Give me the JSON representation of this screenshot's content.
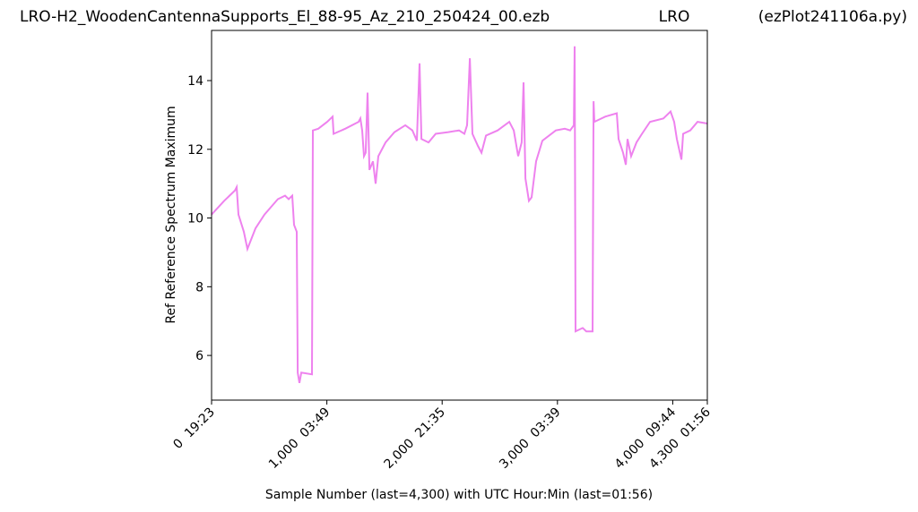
{
  "chart_data": {
    "type": "line",
    "title_left": "LRO-H2_WoodenCantennaSupports_El_88-95_Az_210_250424_00.ezb",
    "title_center": "LRO",
    "title_right": "(ezPlot241106a.py)",
    "y_label": "Ref Reference Spectrum Maximum",
    "x_label": "Sample Number (last=4,300) with UTC Hour:Min (last=01:56)",
    "color": "#ee82ee",
    "x": [
      0,
      109,
      202,
      218,
      233,
      280,
      311,
      381,
      459,
      575,
      638,
      669,
      700,
      715,
      739,
      747,
      762,
      778,
      871,
      879,
      925,
      1003,
      1050,
      1058,
      1159,
      1275,
      1291,
      1306,
      1322,
      1337,
      1353,
      1369,
      1400,
      1423,
      1446,
      1509,
      1586,
      1680,
      1742,
      1781,
      1804,
      1820,
      1882,
      1944,
      2053,
      2146,
      2193,
      2216,
      2240,
      2263,
      2310,
      2341,
      2380,
      2481,
      2582,
      2621,
      2659,
      2690,
      2706,
      2722,
      2753,
      2776,
      2815,
      2869,
      2986,
      3064,
      3110,
      3142,
      3149,
      3157,
      3219,
      3250,
      3305,
      3313,
      3320,
      3414,
      3515,
      3530,
      3569,
      3593,
      3608,
      3639,
      3686,
      3733,
      3803,
      3919,
      3981,
      4012,
      4036,
      4075,
      4090,
      4152,
      4215,
      4300
    ],
    "values": [
      10.1,
      10.5,
      10.8,
      10.9,
      10.1,
      9.6,
      9.1,
      9.7,
      10.1,
      10.55,
      10.65,
      10.55,
      10.65,
      9.8,
      9.6,
      5.5,
      5.2,
      5.5,
      5.45,
      12.55,
      12.6,
      12.8,
      12.95,
      12.45,
      12.6,
      12.8,
      12.9,
      12.55,
      11.8,
      11.9,
      13.65,
      11.4,
      11.65,
      11.0,
      11.8,
      12.2,
      12.5,
      12.7,
      12.55,
      12.25,
      14.5,
      12.3,
      12.2,
      12.45,
      12.5,
      12.55,
      12.45,
      12.7,
      14.65,
      12.45,
      12.1,
      11.9,
      12.4,
      12.55,
      12.8,
      12.55,
      11.8,
      12.2,
      13.95,
      11.15,
      10.5,
      10.6,
      11.65,
      12.25,
      12.55,
      12.6,
      12.55,
      12.7,
      15.0,
      6.7,
      6.8,
      6.7,
      6.7,
      13.4,
      12.8,
      12.95,
      13.05,
      12.3,
      11.9,
      11.55,
      12.3,
      11.8,
      12.2,
      12.45,
      12.8,
      12.9,
      13.1,
      12.8,
      12.3,
      11.7,
      12.45,
      12.55,
      12.8,
      12.75
    ],
    "xlim": [
      0,
      4300
    ],
    "ylim": [
      4.7,
      15.46
    ],
    "xticks": [
      {
        "value": 0,
        "label": "0  19:23"
      },
      {
        "value": 1000,
        "label": "1,000  03:49"
      },
      {
        "value": 2000,
        "label": "2,000  21:35"
      },
      {
        "value": 3000,
        "label": "3,000  03:39"
      },
      {
        "value": 4000,
        "label": "4,000  09:44"
      },
      {
        "value": 4300,
        "label": "4,300  01:56"
      }
    ],
    "yticks": [
      6,
      8,
      10,
      12,
      14
    ]
  }
}
